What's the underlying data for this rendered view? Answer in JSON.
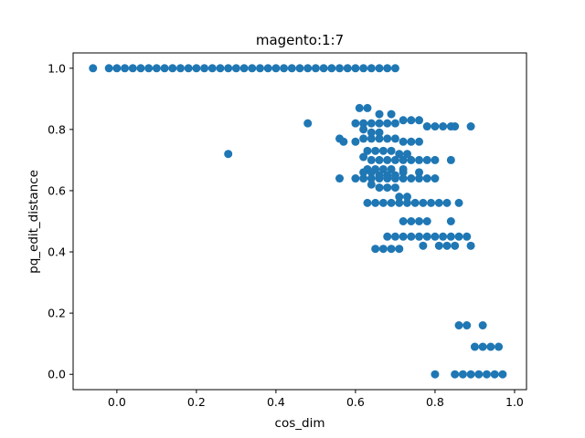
{
  "chart_data": {
    "type": "scatter",
    "title": "magento:1:7",
    "xlabel": "cos_dim",
    "ylabel": "pq_edit_distance",
    "xlim": [
      -0.11,
      1.03
    ],
    "ylim": [
      -0.05,
      1.05
    ],
    "xticks": [
      0.0,
      0.2,
      0.4,
      0.6,
      0.8,
      1.0
    ],
    "xtick_labels": [
      "0.0",
      "0.2",
      "0.4",
      "0.6",
      "0.8",
      "1.0"
    ],
    "yticks": [
      0.0,
      0.2,
      0.4,
      0.6,
      0.8,
      1.0
    ],
    "ytick_labels": [
      "0.0",
      "0.2",
      "0.4",
      "0.6",
      "0.8",
      "1.0"
    ],
    "grid": false,
    "marker_color": "#1f77b4",
    "series": [
      {
        "values": [
          [
            -0.06,
            1.0
          ],
          [
            -0.02,
            1.0
          ],
          [
            0.0,
            1.0
          ],
          [
            0.02,
            1.0
          ],
          [
            0.04,
            1.0
          ],
          [
            0.06,
            1.0
          ],
          [
            0.08,
            1.0
          ],
          [
            0.1,
            1.0
          ],
          [
            0.12,
            1.0
          ],
          [
            0.14,
            1.0
          ],
          [
            0.16,
            1.0
          ],
          [
            0.18,
            1.0
          ],
          [
            0.2,
            1.0
          ],
          [
            0.22,
            1.0
          ],
          [
            0.24,
            1.0
          ],
          [
            0.26,
            1.0
          ],
          [
            0.28,
            1.0
          ],
          [
            0.3,
            1.0
          ],
          [
            0.32,
            1.0
          ],
          [
            0.34,
            1.0
          ],
          [
            0.36,
            1.0
          ],
          [
            0.38,
            1.0
          ],
          [
            0.4,
            1.0
          ],
          [
            0.42,
            1.0
          ],
          [
            0.44,
            1.0
          ],
          [
            0.46,
            1.0
          ],
          [
            0.48,
            1.0
          ],
          [
            0.5,
            1.0
          ],
          [
            0.52,
            1.0
          ],
          [
            0.54,
            1.0
          ],
          [
            0.56,
            1.0
          ],
          [
            0.58,
            1.0
          ],
          [
            0.6,
            1.0
          ],
          [
            0.62,
            1.0
          ],
          [
            0.64,
            1.0
          ],
          [
            0.66,
            1.0
          ],
          [
            0.68,
            1.0
          ],
          [
            0.7,
            1.0
          ],
          [
            0.28,
            0.72
          ],
          [
            0.48,
            0.82
          ],
          [
            0.61,
            0.87
          ],
          [
            0.63,
            0.87
          ],
          [
            0.66,
            0.85
          ],
          [
            0.69,
            0.85
          ],
          [
            0.6,
            0.82
          ],
          [
            0.62,
            0.82
          ],
          [
            0.64,
            0.82
          ],
          [
            0.66,
            0.82
          ],
          [
            0.68,
            0.82
          ],
          [
            0.7,
            0.82
          ],
          [
            0.72,
            0.83
          ],
          [
            0.74,
            0.83
          ],
          [
            0.76,
            0.83
          ],
          [
            0.78,
            0.81
          ],
          [
            0.8,
            0.81
          ],
          [
            0.82,
            0.81
          ],
          [
            0.84,
            0.81
          ],
          [
            0.85,
            0.81
          ],
          [
            0.89,
            0.81
          ],
          [
            0.62,
            0.8
          ],
          [
            0.64,
            0.79
          ],
          [
            0.66,
            0.79
          ],
          [
            0.56,
            0.77
          ],
          [
            0.57,
            0.76
          ],
          [
            0.6,
            0.76
          ],
          [
            0.62,
            0.77
          ],
          [
            0.64,
            0.77
          ],
          [
            0.66,
            0.77
          ],
          [
            0.68,
            0.77
          ],
          [
            0.7,
            0.77
          ],
          [
            0.72,
            0.76
          ],
          [
            0.74,
            0.76
          ],
          [
            0.76,
            0.76
          ],
          [
            0.63,
            0.73
          ],
          [
            0.65,
            0.73
          ],
          [
            0.67,
            0.73
          ],
          [
            0.69,
            0.73
          ],
          [
            0.71,
            0.72
          ],
          [
            0.73,
            0.72
          ],
          [
            0.62,
            0.71
          ],
          [
            0.64,
            0.7
          ],
          [
            0.66,
            0.7
          ],
          [
            0.68,
            0.7
          ],
          [
            0.7,
            0.7
          ],
          [
            0.72,
            0.7
          ],
          [
            0.74,
            0.7
          ],
          [
            0.76,
            0.7
          ],
          [
            0.78,
            0.7
          ],
          [
            0.8,
            0.7
          ],
          [
            0.84,
            0.7
          ],
          [
            0.63,
            0.67
          ],
          [
            0.65,
            0.67
          ],
          [
            0.67,
            0.67
          ],
          [
            0.69,
            0.67
          ],
          [
            0.72,
            0.67
          ],
          [
            0.62,
            0.66
          ],
          [
            0.64,
            0.66
          ],
          [
            0.66,
            0.65
          ],
          [
            0.68,
            0.65
          ],
          [
            0.7,
            0.65
          ],
          [
            0.72,
            0.66
          ],
          [
            0.76,
            0.66
          ],
          [
            0.56,
            0.64
          ],
          [
            0.6,
            0.64
          ],
          [
            0.62,
            0.64
          ],
          [
            0.64,
            0.64
          ],
          [
            0.66,
            0.64
          ],
          [
            0.68,
            0.64
          ],
          [
            0.7,
            0.64
          ],
          [
            0.72,
            0.64
          ],
          [
            0.74,
            0.64
          ],
          [
            0.76,
            0.64
          ],
          [
            0.78,
            0.64
          ],
          [
            0.8,
            0.64
          ],
          [
            0.64,
            0.62
          ],
          [
            0.66,
            0.61
          ],
          [
            0.68,
            0.61
          ],
          [
            0.7,
            0.61
          ],
          [
            0.71,
            0.58
          ],
          [
            0.73,
            0.58
          ],
          [
            0.63,
            0.56
          ],
          [
            0.65,
            0.56
          ],
          [
            0.67,
            0.56
          ],
          [
            0.69,
            0.56
          ],
          [
            0.71,
            0.56
          ],
          [
            0.73,
            0.56
          ],
          [
            0.75,
            0.56
          ],
          [
            0.77,
            0.56
          ],
          [
            0.79,
            0.56
          ],
          [
            0.81,
            0.56
          ],
          [
            0.83,
            0.56
          ],
          [
            0.86,
            0.56
          ],
          [
            0.72,
            0.5
          ],
          [
            0.74,
            0.5
          ],
          [
            0.76,
            0.5
          ],
          [
            0.78,
            0.5
          ],
          [
            0.84,
            0.5
          ],
          [
            0.68,
            0.45
          ],
          [
            0.7,
            0.45
          ],
          [
            0.72,
            0.45
          ],
          [
            0.74,
            0.45
          ],
          [
            0.76,
            0.45
          ],
          [
            0.78,
            0.45
          ],
          [
            0.8,
            0.45
          ],
          [
            0.82,
            0.45
          ],
          [
            0.84,
            0.45
          ],
          [
            0.86,
            0.45
          ],
          [
            0.88,
            0.45
          ],
          [
            0.65,
            0.41
          ],
          [
            0.67,
            0.41
          ],
          [
            0.69,
            0.41
          ],
          [
            0.71,
            0.41
          ],
          [
            0.77,
            0.42
          ],
          [
            0.81,
            0.42
          ],
          [
            0.83,
            0.42
          ],
          [
            0.85,
            0.42
          ],
          [
            0.89,
            0.42
          ],
          [
            0.86,
            0.16
          ],
          [
            0.88,
            0.16
          ],
          [
            0.92,
            0.16
          ],
          [
            0.9,
            0.09
          ],
          [
            0.92,
            0.09
          ],
          [
            0.94,
            0.09
          ],
          [
            0.96,
            0.09
          ],
          [
            0.8,
            0.0
          ],
          [
            0.85,
            0.0
          ],
          [
            0.87,
            0.0
          ],
          [
            0.89,
            0.0
          ],
          [
            0.91,
            0.0
          ],
          [
            0.93,
            0.0
          ],
          [
            0.95,
            0.0
          ],
          [
            0.97,
            0.0
          ]
        ]
      }
    ]
  }
}
